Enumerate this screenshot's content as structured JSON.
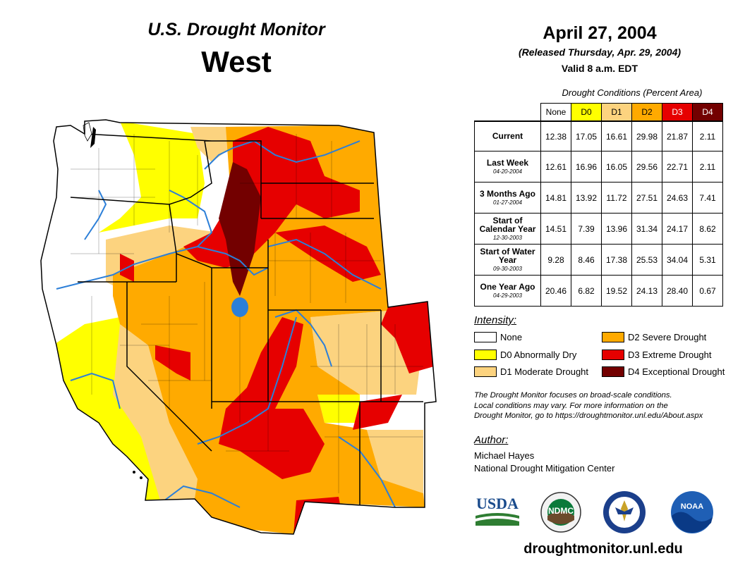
{
  "header": {
    "product": "U.S. Drought Monitor",
    "region": "West",
    "date": "April 27, 2004",
    "released": "(Released Thursday, Apr. 29, 2004)",
    "valid": "Valid 8 a.m. EDT"
  },
  "table": {
    "caption": "Drought Conditions (Percent Area)",
    "columns": [
      "None",
      "D0",
      "D1",
      "D2",
      "D3",
      "D4"
    ],
    "rows": [
      {
        "label": "Current",
        "sub": "",
        "values": [
          "12.38",
          "17.05",
          "16.61",
          "29.98",
          "21.87",
          "2.11"
        ]
      },
      {
        "label": "Last Week",
        "sub": "04-20-2004",
        "values": [
          "12.61",
          "16.96",
          "16.05",
          "29.56",
          "22.71",
          "2.11"
        ]
      },
      {
        "label": "3 Months Ago",
        "sub": "01-27-2004",
        "values": [
          "14.81",
          "13.92",
          "11.72",
          "27.51",
          "24.63",
          "7.41"
        ]
      },
      {
        "label": "Start of Calendar Year",
        "sub": "12-30-2003",
        "values": [
          "14.51",
          "7.39",
          "13.96",
          "31.34",
          "24.17",
          "8.62"
        ]
      },
      {
        "label": "Start of Water Year",
        "sub": "09-30-2003",
        "values": [
          "9.28",
          "8.46",
          "17.38",
          "25.53",
          "34.04",
          "5.31"
        ]
      },
      {
        "label": "One Year Ago",
        "sub": "04-29-2003",
        "values": [
          "20.46",
          "6.82",
          "19.52",
          "24.13",
          "28.40",
          "0.67"
        ]
      }
    ]
  },
  "colors": {
    "none": "#ffffff",
    "d0": "#ffff00",
    "d1": "#fcd37f",
    "d2": "#ffaa00",
    "d3": "#e60000",
    "d4": "#730000",
    "water": "#2c7fd8"
  },
  "legend": {
    "title": "Intensity:",
    "items": [
      {
        "label": "None",
        "color": "#ffffff"
      },
      {
        "label": "D0 Abnormally Dry",
        "color": "#ffff00"
      },
      {
        "label": "D1 Moderate Drought",
        "color": "#fcd37f"
      },
      {
        "label": "D2 Severe Drought",
        "color": "#ffaa00"
      },
      {
        "label": "D3 Extreme Drought",
        "color": "#e60000"
      },
      {
        "label": "D4 Exceptional Drought",
        "color": "#730000"
      }
    ]
  },
  "note": {
    "line1": "The Drought Monitor focuses on broad-scale conditions.",
    "line2": "Local conditions may vary. For more information on the",
    "line3": "Drought Monitor, go to https://droughtmonitor.unl.edu/About.aspx"
  },
  "author": {
    "title": "Author:",
    "name": "Michael Hayes",
    "org": "National Drought Mitigation Center"
  },
  "logos": {
    "usda": "USDA",
    "ndmc": "NDMC",
    "noaa": "NOAA"
  },
  "website": "droughtmonitor.unl.edu"
}
